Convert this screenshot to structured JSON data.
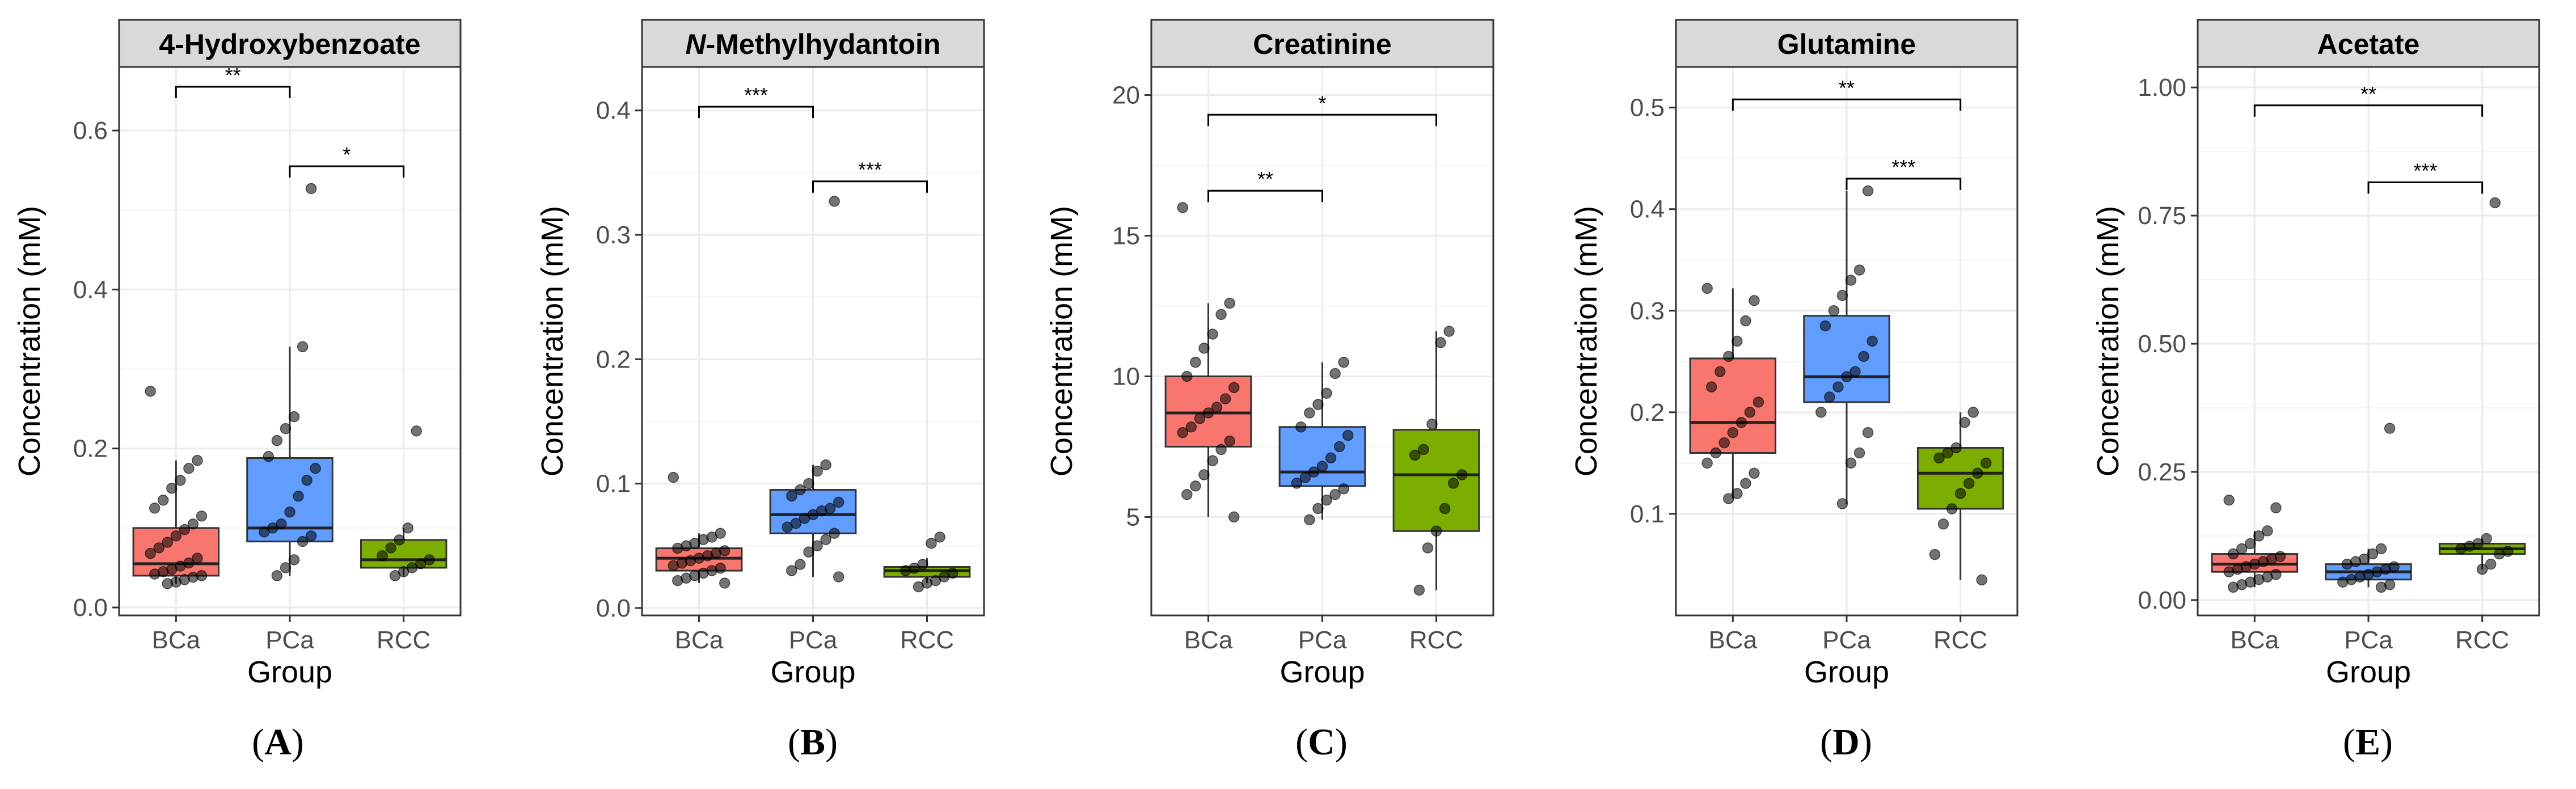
{
  "figure": {
    "x_axis_title": "Group",
    "y_axis_title": "Concentration (mM)"
  },
  "chart_data": [
    {
      "type": "box",
      "panel_label": "A",
      "title": "4-Hydroxybenzoate",
      "title_prefix": "",
      "title_rest": "4-Hydroxybenzoate",
      "xlabel": "Group",
      "ylabel": "Concentration (mM)",
      "ylim": [
        -0.01,
        0.68
      ],
      "yticks": [
        0,
        0.2,
        0.4,
        0.6
      ],
      "ytick_labels": [
        "0.0",
        "0.2",
        "0.4",
        "0.6"
      ],
      "categories": [
        "BCa",
        "PCa",
        "RCC"
      ],
      "colors": [
        "#f8766d",
        "#619cff",
        "#7cae00"
      ],
      "boxes": [
        {
          "group": "BCa",
          "min": 0.03,
          "q1": 0.04,
          "median": 0.055,
          "q3": 0.1,
          "max": 0.185
        },
        {
          "group": "PCa",
          "min": 0.04,
          "q1": 0.083,
          "median": 0.1,
          "q3": 0.188,
          "max": 0.328
        },
        {
          "group": "RCC",
          "min": 0.04,
          "q1": 0.05,
          "median": 0.06,
          "q3": 0.085,
          "max": 0.1
        }
      ],
      "points": [
        [
          0.272,
          0.185,
          0.175,
          0.16,
          0.15,
          0.135,
          0.125,
          0.115,
          0.105,
          0.098,
          0.09,
          0.082,
          0.075,
          0.068,
          0.062,
          0.056,
          0.052,
          0.048,
          0.045,
          0.042,
          0.04,
          0.038,
          0.035,
          0.032,
          0.03
        ],
        [
          0.527,
          0.328,
          0.24,
          0.225,
          0.21,
          0.19,
          0.175,
          0.16,
          0.14,
          0.12,
          0.105,
          0.1,
          0.095,
          0.09,
          0.083,
          0.06,
          0.05,
          0.04
        ],
        [
          0.222,
          0.1,
          0.085,
          0.075,
          0.065,
          0.06,
          0.055,
          0.05,
          0.045,
          0.04
        ]
      ],
      "significance": [
        {
          "from": "BCa",
          "to": "PCa",
          "label": "**",
          "y": 0.655
        },
        {
          "from": "PCa",
          "to": "RCC",
          "label": "*",
          "y": 0.555
        }
      ]
    },
    {
      "type": "box",
      "panel_label": "B",
      "title": "N-Methylhydantoin",
      "title_prefix": "N",
      "title_rest": "-Methylhydantoin",
      "xlabel": "Group",
      "ylabel": "Concentration (mM)",
      "ylim": [
        -0.006,
        0.435
      ],
      "yticks": [
        0,
        0.1,
        0.2,
        0.3,
        0.4
      ],
      "ytick_labels": [
        "0.0",
        "0.1",
        "0.2",
        "0.3",
        "0.4"
      ],
      "categories": [
        "BCa",
        "PCa",
        "RCC"
      ],
      "colors": [
        "#f8766d",
        "#619cff",
        "#7cae00"
      ],
      "boxes": [
        {
          "group": "BCa",
          "min": 0.02,
          "q1": 0.03,
          "median": 0.04,
          "q3": 0.048,
          "max": 0.06
        },
        {
          "group": "PCa",
          "min": 0.025,
          "q1": 0.06,
          "median": 0.075,
          "q3": 0.095,
          "max": 0.115
        },
        {
          "group": "RCC",
          "min": 0.02,
          "q1": 0.025,
          "median": 0.03,
          "q3": 0.033,
          "max": 0.04
        }
      ],
      "points": [
        [
          0.105,
          0.06,
          0.057,
          0.055,
          0.052,
          0.05,
          0.048,
          0.046,
          0.044,
          0.042,
          0.04,
          0.038,
          0.036,
          0.034,
          0.032,
          0.03,
          0.028,
          0.026,
          0.024,
          0.022,
          0.02
        ],
        [
          0.327,
          0.115,
          0.11,
          0.1,
          0.095,
          0.09,
          0.085,
          0.08,
          0.078,
          0.075,
          0.072,
          0.068,
          0.065,
          0.06,
          0.055,
          0.05,
          0.045,
          0.035,
          0.03,
          0.025
        ],
        [
          0.057,
          0.052,
          0.035,
          0.032,
          0.03,
          0.028,
          0.025,
          0.022,
          0.02,
          0.017
        ]
      ],
      "significance": [
        {
          "from": "BCa",
          "to": "PCa",
          "label": "***",
          "y": 0.403
        },
        {
          "from": "PCa",
          "to": "RCC",
          "label": "***",
          "y": 0.343
        }
      ]
    },
    {
      "type": "box",
      "panel_label": "C",
      "title": "Creatinine",
      "title_prefix": "",
      "title_rest": "Creatinine",
      "xlabel": "Group",
      "ylabel": "Concentration (mM)",
      "ylim": [
        1.5,
        21
      ],
      "yticks": [
        5,
        10,
        15,
        20
      ],
      "ytick_labels": [
        "5",
        "10",
        "15",
        "20"
      ],
      "categories": [
        "BCa",
        "PCa",
        "RCC"
      ],
      "colors": [
        "#f8766d",
        "#619cff",
        "#7cae00"
      ],
      "boxes": [
        {
          "group": "BCa",
          "min": 5.0,
          "q1": 7.5,
          "median": 8.7,
          "q3": 10.0,
          "max": 12.6
        },
        {
          "group": "PCa",
          "min": 4.9,
          "q1": 6.1,
          "median": 6.6,
          "q3": 8.2,
          "max": 10.5
        },
        {
          "group": "RCC",
          "min": 2.4,
          "q1": 4.5,
          "median": 6.5,
          "q3": 8.1,
          "max": 11.6
        }
      ],
      "points": [
        [
          16.0,
          12.6,
          12.2,
          11.5,
          11.0,
          10.5,
          10.0,
          9.6,
          9.2,
          8.9,
          8.7,
          8.5,
          8.2,
          8.0,
          7.7,
          7.4,
          7.0,
          6.5,
          6.1,
          5.8,
          5.0
        ],
        [
          10.5,
          10.1,
          9.4,
          9.0,
          8.7,
          8.2,
          7.9,
          7.5,
          7.1,
          6.8,
          6.6,
          6.4,
          6.2,
          6.0,
          5.8,
          5.6,
          5.3,
          4.9
        ],
        [
          11.6,
          11.2,
          8.3,
          7.4,
          7.2,
          6.5,
          6.2,
          5.3,
          4.5,
          3.9,
          2.4
        ]
      ],
      "significance": [
        {
          "from": "BCa",
          "to": "RCC",
          "label": "*",
          "y": 19.3
        },
        {
          "from": "BCa",
          "to": "PCa",
          "label": "**",
          "y": 16.6
        }
      ]
    },
    {
      "type": "box",
      "panel_label": "D",
      "title": "Glutamine",
      "title_prefix": "",
      "title_rest": "Glutamine",
      "xlabel": "Group",
      "ylabel": "Concentration (mM)",
      "ylim": [
        0.0,
        0.54
      ],
      "yticks": [
        0.1,
        0.2,
        0.3,
        0.4,
        0.5
      ],
      "ytick_labels": [
        "0.1",
        "0.2",
        "0.3",
        "0.4",
        "0.5"
      ],
      "categories": [
        "BCa",
        "PCa",
        "RCC"
      ],
      "colors": [
        "#f8766d",
        "#619cff",
        "#7cae00"
      ],
      "boxes": [
        {
          "group": "BCa",
          "min": 0.115,
          "q1": 0.16,
          "median": 0.19,
          "q3": 0.253,
          "max": 0.322
        },
        {
          "group": "PCa",
          "min": 0.11,
          "q1": 0.21,
          "median": 0.235,
          "q3": 0.295,
          "max": 0.418
        },
        {
          "group": "RCC",
          "min": 0.035,
          "q1": 0.105,
          "median": 0.14,
          "q3": 0.165,
          "max": 0.2
        }
      ],
      "points": [
        [
          0.322,
          0.31,
          0.29,
          0.27,
          0.255,
          0.24,
          0.225,
          0.21,
          0.2,
          0.19,
          0.18,
          0.17,
          0.16,
          0.15,
          0.14,
          0.13,
          0.12,
          0.115
        ],
        [
          0.418,
          0.34,
          0.33,
          0.315,
          0.3,
          0.285,
          0.27,
          0.255,
          0.24,
          0.235,
          0.225,
          0.215,
          0.2,
          0.18,
          0.16,
          0.15,
          0.11
        ],
        [
          0.2,
          0.19,
          0.165,
          0.16,
          0.155,
          0.15,
          0.14,
          0.13,
          0.12,
          0.105,
          0.09,
          0.06,
          0.035
        ]
      ],
      "significance": [
        {
          "from": "BCa",
          "to": "RCC",
          "label": "**",
          "y": 0.508
        },
        {
          "from": "PCa",
          "to": "RCC",
          "label": "***",
          "y": 0.43
        }
      ]
    },
    {
      "type": "box",
      "panel_label": "E",
      "title": "Acetate",
      "title_prefix": "",
      "title_rest": "Acetate",
      "xlabel": "Group",
      "ylabel": "Concentration (mM)",
      "ylim": [
        -0.03,
        1.04
      ],
      "yticks": [
        0,
        0.25,
        0.5,
        0.75,
        1.0
      ],
      "ytick_labels": [
        "0.00",
        "0.25",
        "0.50",
        "0.75",
        "1.00"
      ],
      "categories": [
        "BCa",
        "PCa",
        "RCC"
      ],
      "colors": [
        "#f8766d",
        "#619cff",
        "#7cae00"
      ],
      "boxes": [
        {
          "group": "BCa",
          "min": 0.025,
          "q1": 0.055,
          "median": 0.07,
          "q3": 0.09,
          "max": 0.135
        },
        {
          "group": "PCa",
          "min": 0.025,
          "q1": 0.04,
          "median": 0.055,
          "q3": 0.07,
          "max": 0.1
        },
        {
          "group": "RCC",
          "min": 0.06,
          "q1": 0.09,
          "median": 0.1,
          "q3": 0.11,
          "max": 0.12
        }
      ],
      "points": [
        [
          0.195,
          0.18,
          0.135,
          0.125,
          0.11,
          0.1,
          0.09,
          0.085,
          0.08,
          0.075,
          0.07,
          0.065,
          0.06,
          0.055,
          0.05,
          0.045,
          0.04,
          0.035,
          0.03,
          0.025
        ],
        [
          0.335,
          0.1,
          0.09,
          0.08,
          0.075,
          0.07,
          0.065,
          0.06,
          0.055,
          0.05,
          0.045,
          0.04,
          0.035,
          0.03,
          0.025
        ],
        [
          0.775,
          0.12,
          0.11,
          0.105,
          0.1,
          0.095,
          0.09,
          0.07,
          0.06
        ]
      ],
      "significance": [
        {
          "from": "BCa",
          "to": "RCC",
          "label": "**",
          "y": 0.965
        },
        {
          "from": "PCa",
          "to": "RCC",
          "label": "***",
          "y": 0.815
        }
      ]
    }
  ]
}
